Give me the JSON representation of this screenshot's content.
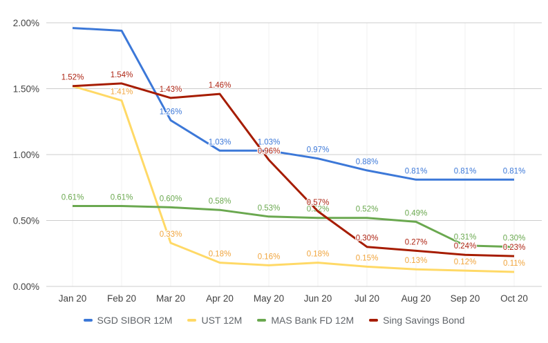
{
  "chart_data": {
    "type": "line",
    "title": "",
    "categories": [
      "Jan 20",
      "Feb 20",
      "Mar 20",
      "Apr 20",
      "May 20",
      "Jun 20",
      "Jul 20",
      "Aug 20",
      "Sep 20",
      "Oct 20"
    ],
    "series": [
      {
        "name": "SGD SIBOR 12M",
        "color": "#3C78D8",
        "label_color": "#3C78D8",
        "values": [
          1.96,
          1.94,
          1.26,
          1.03,
          1.03,
          0.97,
          0.88,
          0.81,
          0.81,
          0.81
        ],
        "labels": [
          "",
          "",
          "1.26%",
          "1.03%",
          "1.03%",
          "0.97%",
          "0.88%",
          "0.81%",
          "0.81%",
          "0.81%"
        ]
      },
      {
        "name": "UST 12M",
        "color": "#FFD966",
        "label_color": "#F0A43C",
        "values": [
          1.52,
          1.41,
          0.33,
          0.18,
          0.16,
          0.18,
          0.15,
          0.13,
          0.12,
          0.11
        ],
        "labels": [
          "1.52%",
          "1.41%",
          "0.33%",
          "0.18%",
          "0.16%",
          "0.18%",
          "0.15%",
          "0.13%",
          "0.12%",
          "0.11%"
        ]
      },
      {
        "name": "MAS Bank FD 12M",
        "color": "#6AA84F",
        "label_color": "#6AA84F",
        "values": [
          0.61,
          0.61,
          0.6,
          0.58,
          0.53,
          0.52,
          0.52,
          0.49,
          0.31,
          0.3
        ],
        "labels": [
          "0.61%",
          "0.61%",
          "0.60%",
          "0.58%",
          "0.53%",
          "0.52%",
          "0.52%",
          "0.49%",
          "0.31%",
          "0.30%"
        ]
      },
      {
        "name": "Sing Savings Bond",
        "color": "#A61C00",
        "label_color": "#AD2413",
        "values": [
          1.52,
          1.54,
          1.43,
          1.46,
          0.96,
          0.57,
          0.3,
          0.27,
          0.24,
          0.23
        ],
        "labels": [
          "1.52%",
          "1.54%",
          "1.43%",
          "1.46%",
          "0.96%",
          "0.57%",
          "0.30%",
          "0.27%",
          "0.24%",
          "0.23%"
        ]
      }
    ],
    "y_axis": {
      "ticks": [
        "0.00%",
        "0.50%",
        "1.00%",
        "1.50%",
        "2.00%"
      ],
      "min": 0,
      "max": 2
    },
    "grid": true,
    "legend_position": "bottom"
  }
}
